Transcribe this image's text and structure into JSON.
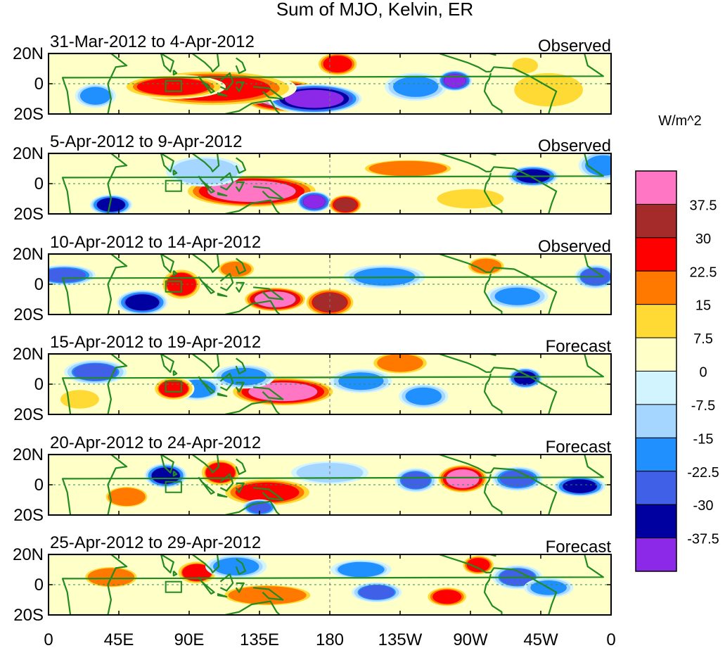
{
  "chart_data": {
    "type": "heatmap",
    "title": "Sum of MJO, Kelvin, ER",
    "variable_units": "W/m^2",
    "x_ticks": [
      "0",
      "45E",
      "90E",
      "135E",
      "180",
      "135W",
      "90W",
      "45W",
      "0"
    ],
    "y_ticks": [
      "20N",
      "0",
      "20S"
    ],
    "lon_range": [
      0,
      360
    ],
    "lat_range": [
      -20,
      20
    ],
    "colorbar": {
      "labels": [
        "37.5",
        "30",
        "22.5",
        "15",
        "7.5",
        "0",
        "-7.5",
        "-15",
        "-22.5",
        "-30",
        "-37.5"
      ],
      "levels": [
        37.5,
        30,
        22.5,
        15,
        7.5,
        0,
        -7.5,
        -15,
        -22.5,
        -30,
        -37.5
      ],
      "colors": [
        "#ff77c4",
        "#a52a2a",
        "#ff0000",
        "#ff7800",
        "#ffd934",
        "#ffffc8",
        "#d2f4ff",
        "#a4d6ff",
        "#2090ff",
        "#4060e8",
        "#0000a0",
        "#8c28e8"
      ]
    },
    "coast_color": "#228b22",
    "panels": [
      {
        "period": "31-Mar-2012 to 4-Apr-2012",
        "kind": "Observed",
        "anomalies": [
          [
            150,
            -8,
            42,
            20,
            8
          ],
          [
            170,
            -10,
            -45,
            22,
            7
          ],
          [
            105,
            -3,
            28,
            40,
            9
          ],
          [
            80,
            -2,
            26,
            25,
            6
          ],
          [
            185,
            13,
            28,
            10,
            6
          ],
          [
            235,
            -2,
            -22,
            15,
            7
          ],
          [
            260,
            2,
            -38,
            8,
            5
          ],
          [
            30,
            -8,
            -20,
            10,
            6
          ],
          [
            305,
            12,
            15,
            8,
            5
          ],
          [
            320,
            -4,
            10,
            20,
            10
          ]
        ]
      },
      {
        "period": "5-Apr-2012 to 9-Apr-2012",
        "kind": "Observed",
        "anomalies": [
          [
            130,
            -5,
            38,
            32,
            8
          ],
          [
            170,
            -12,
            -38,
            8,
            5
          ],
          [
            190,
            -14,
            35,
            8,
            5
          ],
          [
            40,
            -14,
            -32,
            10,
            5
          ],
          [
            230,
            10,
            18,
            25,
            5
          ],
          [
            310,
            5,
            -33,
            12,
            5
          ],
          [
            355,
            12,
            -22,
            12,
            7
          ],
          [
            100,
            8,
            -12,
            20,
            8
          ],
          [
            270,
            -10,
            12,
            20,
            6
          ]
        ]
      },
      {
        "period": "10-Apr-2012 to 14-Apr-2012",
        "kind": "Observed",
        "anomalies": [
          [
            145,
            -10,
            40,
            15,
            6
          ],
          [
            180,
            -12,
            32,
            12,
            7
          ],
          [
            85,
            0,
            25,
            10,
            8
          ],
          [
            60,
            -12,
            -33,
            12,
            6
          ],
          [
            10,
            6,
            -28,
            15,
            5
          ],
          [
            215,
            5,
            -20,
            20,
            6
          ],
          [
            300,
            -8,
            -22,
            15,
            6
          ],
          [
            350,
            5,
            -25,
            10,
            6
          ],
          [
            120,
            10,
            20,
            10,
            5
          ],
          [
            280,
            12,
            20,
            10,
            5
          ]
        ]
      },
      {
        "period": "15-Apr-2012 to 19-Apr-2012",
        "kind": "Forecast",
        "anomalies": [
          [
            150,
            -5,
            38,
            25,
            7
          ],
          [
            125,
            5,
            -22,
            15,
            6
          ],
          [
            95,
            -3,
            -18,
            12,
            6
          ],
          [
            80,
            -3,
            25,
            10,
            6
          ],
          [
            225,
            14,
            20,
            15,
            6
          ],
          [
            200,
            2,
            -22,
            15,
            6
          ],
          [
            240,
            -8,
            -22,
            12,
            6
          ],
          [
            305,
            4,
            -35,
            8,
            5
          ],
          [
            30,
            8,
            -25,
            15,
            6
          ],
          [
            20,
            -10,
            15,
            12,
            6
          ]
        ]
      },
      {
        "period": "20-Apr-2012 to 24-Apr-2012",
        "kind": "Forecast",
        "anomalies": [
          [
            265,
            4,
            38,
            12,
            7
          ],
          [
            140,
            -5,
            28,
            22,
            7
          ],
          [
            110,
            8,
            25,
            10,
            7
          ],
          [
            75,
            6,
            -32,
            10,
            6
          ],
          [
            135,
            -15,
            -30,
            8,
            4
          ],
          [
            340,
            -1,
            -32,
            12,
            5
          ],
          [
            300,
            4,
            -28,
            12,
            6
          ],
          [
            235,
            3,
            -25,
            10,
            6
          ],
          [
            50,
            -8,
            18,
            12,
            6
          ],
          [
            180,
            8,
            -12,
            20,
            6
          ]
        ]
      },
      {
        "period": "25-Apr-2012 to 29-Apr-2012",
        "kind": "Forecast",
        "anomalies": [
          [
            95,
            8,
            25,
            10,
            6
          ],
          [
            255,
            -8,
            28,
            10,
            5
          ],
          [
            275,
            13,
            28,
            8,
            5
          ],
          [
            210,
            -5,
            -25,
            12,
            5
          ],
          [
            140,
            -7,
            18,
            25,
            6
          ],
          [
            120,
            12,
            -20,
            15,
            6
          ],
          [
            300,
            5,
            -25,
            12,
            6
          ],
          [
            40,
            5,
            18,
            15,
            6
          ],
          [
            320,
            -2,
            -22,
            12,
            5
          ],
          [
            200,
            10,
            -18,
            15,
            5
          ]
        ]
      }
    ]
  }
}
